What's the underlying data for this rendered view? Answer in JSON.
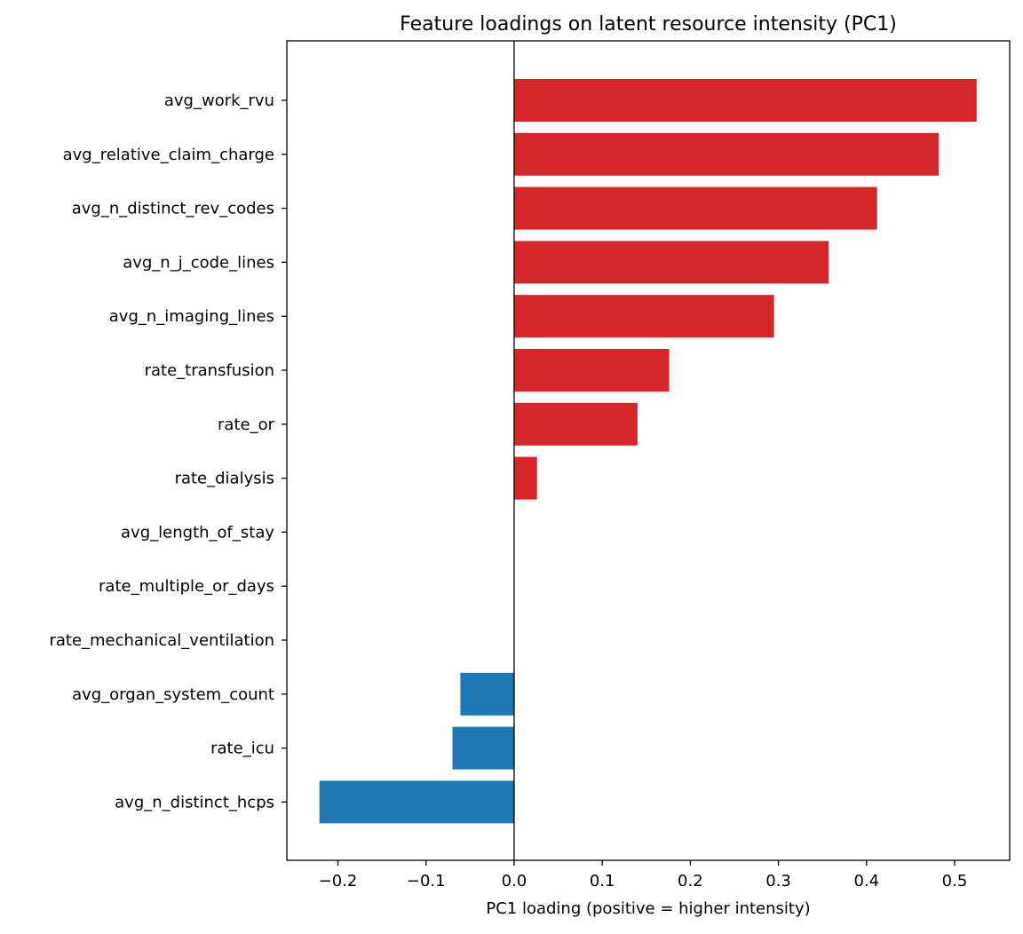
{
  "chart_data": {
    "type": "bar",
    "orientation": "horizontal",
    "title": "Feature loadings on latent resource intensity (PC1)",
    "xlabel": "PC1 loading (positive = higher intensity)",
    "ylabel": "",
    "xlim": [
      -0.258,
      0.5625
    ],
    "xticks": [
      -0.2,
      -0.1,
      0.0,
      0.1,
      0.2,
      0.3,
      0.4,
      0.5
    ],
    "xtick_labels": [
      "−0.2",
      "−0.1",
      "0.0",
      "0.1",
      "0.2",
      "0.3",
      "0.4",
      "0.5"
    ],
    "grid": false,
    "zero_line": true,
    "positive_color": "#d62728",
    "negative_color": "#1f77b4",
    "categories": [
      "avg_work_rvu",
      "avg_relative_claim_charge",
      "avg_n_distinct_rev_codes",
      "avg_n_j_code_lines",
      "avg_n_imaging_lines",
      "rate_transfusion",
      "rate_or",
      "rate_dialysis",
      "avg_length_of_stay",
      "rate_multiple_or_days",
      "rate_mechanical_ventilation",
      "avg_organ_system_count",
      "rate_icu",
      "avg_n_distinct_hcps"
    ],
    "values": [
      0.525,
      0.482,
      0.412,
      0.357,
      0.295,
      0.176,
      0.14,
      0.026,
      0.0,
      0.0,
      0.0,
      -0.061,
      -0.07,
      -0.221
    ]
  }
}
